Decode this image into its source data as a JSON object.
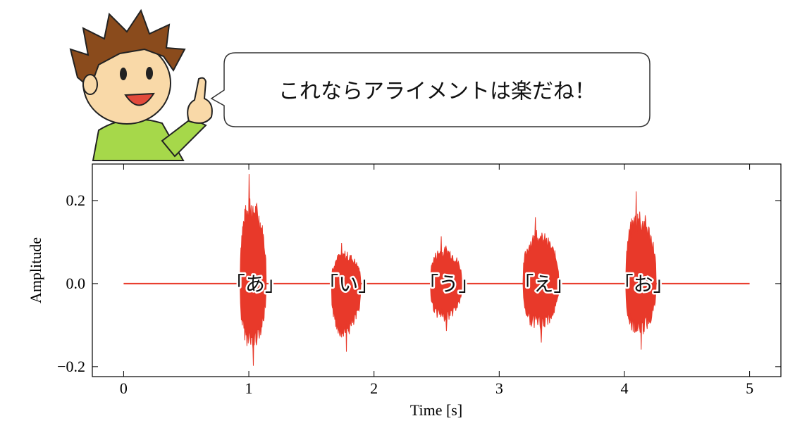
{
  "speech_bubble": {
    "text": "これならアライメントは楽だね！"
  },
  "chart_data": {
    "type": "waveform",
    "xlabel": "Time [s]",
    "ylabel": "Amplitude",
    "xlim": [
      -0.25,
      5.25
    ],
    "ylim": [
      -0.224,
      0.288
    ],
    "xticks": [
      0,
      1,
      2,
      3,
      4,
      5
    ],
    "yticks": [
      {
        "value": -0.2,
        "label": "−0.2"
      },
      {
        "value": 0,
        "label": "0.0"
      },
      {
        "value": 0.2,
        "label": "0.2"
      }
    ],
    "color": "#e8392a",
    "signal": {
      "start": 0,
      "end": 5
    },
    "segments": [
      {
        "label": "「あ」",
        "start": 0.93,
        "end": 1.17,
        "max": 0.264,
        "min": -0.198
      },
      {
        "label": "「い」",
        "start": 1.66,
        "end": 1.93,
        "max": 0.098,
        "min": -0.164
      },
      {
        "label": "「う」",
        "start": 2.45,
        "end": 2.74,
        "max": 0.114,
        "min": -0.114
      },
      {
        "label": "「え」",
        "start": 3.19,
        "end": 3.52,
        "max": 0.16,
        "min": -0.142
      },
      {
        "label": "「お」",
        "start": 4.01,
        "end": 4.29,
        "max": 0.222,
        "min": -0.159
      }
    ]
  }
}
